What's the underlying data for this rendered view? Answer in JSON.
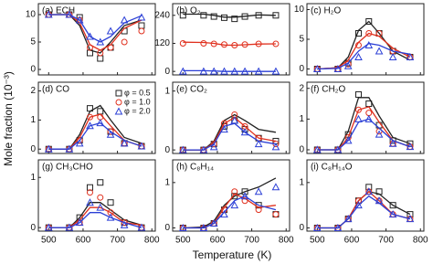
{
  "axes": {
    "xlabel": "Temperature (K)",
    "ylabel": "Mole fraction (10⁻³)",
    "xlim": [
      470,
      810
    ],
    "xticks": [
      500,
      600,
      700,
      800
    ]
  },
  "chart_data": [
    {
      "type": "line",
      "title": "(a) ECH",
      "ylim": [
        -1,
        12
      ],
      "yticks": [
        0,
        5,
        10
      ],
      "x": [
        500,
        560,
        590,
        620,
        650,
        680,
        720,
        770
      ],
      "series": [
        {
          "color": "#222222",
          "marker": "square",
          "values": [
            10,
            10,
            9.5,
            3,
            2,
            4,
            7,
            8
          ],
          "fit": [
            10,
            10,
            8,
            3.5,
            3,
            5,
            8,
            9
          ]
        },
        {
          "color": "#e0301e",
          "marker": "circle",
          "values": [
            10,
            10,
            9,
            4,
            3,
            4,
            5,
            7
          ],
          "fit": [
            10,
            10,
            8.5,
            4.5,
            3.5,
            4.5,
            7.5,
            9
          ]
        },
        {
          "color": "#2b3fd6",
          "marker": "triangle",
          "values": [
            10,
            10,
            9,
            6,
            5,
            7,
            9,
            9.5
          ],
          "fit": [
            10,
            10,
            9,
            6,
            5,
            6,
            8.5,
            9.8
          ]
        }
      ]
    },
    {
      "type": "line",
      "title": "(b) O₂",
      "ylim": [
        -15,
        290
      ],
      "yticks": [
        0,
        120,
        240
      ],
      "x": [
        500,
        560,
        590,
        620,
        650,
        680,
        720,
        770
      ],
      "series": [
        {
          "color": "#222222",
          "marker": "square",
          "values": [
            240,
            240,
            235,
            230,
            225,
            235,
            240,
            240
          ],
          "fit": [
            245,
            245,
            240,
            232,
            232,
            236,
            242,
            240
          ]
        },
        {
          "color": "#e0301e",
          "marker": "circle",
          "values": [
            120,
            120,
            118,
            115,
            112,
            115,
            118,
            118
          ],
          "fit": [
            125,
            124,
            120,
            113,
            112,
            114,
            117,
            118
          ]
        },
        {
          "color": "#2b3fd6",
          "marker": "triangle",
          "values": [
            0,
            0,
            0,
            0,
            0,
            0,
            0,
            0
          ],
          "fit": [
            3,
            3,
            2,
            0,
            0,
            0,
            0,
            0
          ]
        }
      ]
    },
    {
      "type": "line",
      "title": "(c) H₂O",
      "ylim": [
        -1,
        11
      ],
      "yticks": [
        0,
        5,
        10
      ],
      "x": [
        500,
        560,
        590,
        620,
        650,
        680,
        720,
        770
      ],
      "series": [
        {
          "color": "#222222",
          "marker": "square",
          "values": [
            0,
            0,
            1,
            6,
            8,
            6,
            3,
            2
          ],
          "fit": [
            0,
            0.2,
            2,
            6.5,
            8,
            6,
            3,
            1.5
          ]
        },
        {
          "color": "#e0301e",
          "marker": "circle",
          "values": [
            0,
            0,
            0.8,
            4,
            6,
            6,
            3,
            2
          ],
          "fit": [
            0,
            0.2,
            1.5,
            4.5,
            6,
            5.5,
            3.5,
            2
          ]
        },
        {
          "color": "#2b3fd6",
          "marker": "triangle",
          "values": [
            0,
            0,
            0.5,
            2,
            4,
            3,
            2,
            2
          ],
          "fit": [
            0,
            0.1,
            1,
            3,
            4.3,
            4,
            3,
            2.5
          ]
        }
      ]
    },
    {
      "type": "line",
      "title": "(d) CO",
      "ylim": [
        -0.15,
        2.3
      ],
      "yticks": [
        0,
        1,
        2
      ],
      "x": [
        500,
        560,
        590,
        620,
        650,
        680,
        720,
        770
      ],
      "series": [
        {
          "name": "φ = 0.5",
          "color": "#222222",
          "marker": "square",
          "values": [
            0,
            0,
            0.3,
            1.4,
            1.3,
            0.6,
            0.2,
            0.1
          ],
          "fit": [
            0,
            0,
            0.5,
            1.3,
            1.5,
            1,
            0.4,
            0.2
          ]
        },
        {
          "name": "φ = 1.0",
          "color": "#e0301e",
          "marker": "circle",
          "values": [
            0,
            0,
            0.3,
            1.1,
            1.1,
            0.6,
            0.2,
            0.1
          ],
          "fit": [
            0,
            0,
            0.4,
            1.1,
            1.2,
            0.8,
            0.3,
            0.1
          ]
        },
        {
          "name": "φ = 2.0",
          "color": "#2b3fd6",
          "marker": "triangle",
          "values": [
            0,
            0,
            0.2,
            0.8,
            0.9,
            0.5,
            0.2,
            0.1
          ],
          "fit": [
            0,
            0,
            0.3,
            0.8,
            0.9,
            0.6,
            0.3,
            0.1
          ]
        }
      ]
    },
    {
      "type": "line",
      "title": "(e) CO₂",
      "ylim": [
        -0.06,
        1.15
      ],
      "yticks": [
        0,
        1
      ],
      "x": [
        500,
        560,
        590,
        620,
        650,
        680,
        720,
        770
      ],
      "series": [
        {
          "color": "#222222",
          "marker": "square",
          "values": [
            0,
            0,
            0.1,
            0.4,
            0.5,
            0.35,
            0.2,
            0.15
          ],
          "fit": [
            0,
            0,
            0.15,
            0.5,
            0.6,
            0.5,
            0.35,
            0.3
          ]
        },
        {
          "color": "#e0301e",
          "marker": "circle",
          "values": [
            0,
            0,
            0.1,
            0.45,
            0.6,
            0.4,
            0.2,
            0.1
          ],
          "fit": [
            0,
            0,
            0.12,
            0.45,
            0.55,
            0.4,
            0.2,
            0.15
          ]
        },
        {
          "color": "#2b3fd6",
          "marker": "triangle",
          "values": [
            0,
            0,
            0.05,
            0.35,
            0.5,
            0.3,
            0.1,
            0.05
          ],
          "fit": [
            0,
            0,
            0.1,
            0.4,
            0.45,
            0.3,
            0.15,
            0.1
          ]
        }
      ]
    },
    {
      "type": "line",
      "title": "(f) CH₂O",
      "ylim": [
        -0.12,
        2.2
      ],
      "yticks": [
        0,
        1,
        2
      ],
      "x": [
        500,
        560,
        590,
        620,
        650,
        680,
        720,
        770
      ],
      "series": [
        {
          "color": "#222222",
          "marker": "square",
          "values": [
            0,
            0,
            0.5,
            1.8,
            1.5,
            0.8,
            0.3,
            0.2
          ],
          "fit": [
            0,
            0,
            0.6,
            1.7,
            1.7,
            1.1,
            0.4,
            0.2
          ]
        },
        {
          "color": "#e0301e",
          "marker": "circle",
          "values": [
            0,
            0,
            0.4,
            1.3,
            1.2,
            0.6,
            0.2,
            0.1
          ],
          "fit": [
            0,
            0,
            0.4,
            1.3,
            1.4,
            0.9,
            0.3,
            0.1
          ]
        },
        {
          "color": "#2b3fd6",
          "marker": "triangle",
          "values": [
            0,
            0,
            0.3,
            1,
            1,
            0.5,
            0.2,
            0.1
          ],
          "fit": [
            0,
            0,
            0.3,
            0.9,
            1,
            0.7,
            0.3,
            0.1
          ]
        }
      ]
    },
    {
      "type": "line",
      "title": "(g) CH₃CHO",
      "ylim": [
        -0.07,
        1.35
      ],
      "yticks": [
        0,
        1
      ],
      "x": [
        500,
        560,
        590,
        620,
        650,
        680,
        720,
        770
      ],
      "series": [
        {
          "color": "#222222",
          "marker": "square",
          "values": [
            0,
            0,
            0.2,
            0.8,
            0.9,
            0.5,
            0.1,
            0
          ],
          "fit": [
            0,
            0,
            0.2,
            0.5,
            0.5,
            0.35,
            0.15,
            0.05
          ]
        },
        {
          "color": "#e0301e",
          "marker": "circle",
          "values": [
            0,
            0,
            0.1,
            0.7,
            0.6,
            0.3,
            0.1,
            0
          ],
          "fit": [
            0,
            0,
            0.15,
            0.4,
            0.4,
            0.3,
            0.1,
            0.05
          ]
        },
        {
          "color": "#2b3fd6",
          "marker": "triangle",
          "values": [
            0,
            0,
            0.1,
            0.5,
            0.4,
            0.2,
            0.05,
            0
          ],
          "fit": [
            0,
            0,
            0.1,
            0.3,
            0.3,
            0.2,
            0.1,
            0
          ]
        }
      ]
    },
    {
      "type": "line",
      "title": "(h) C₈H₁₄",
      "ylim": [
        -0.07,
        1.5
      ],
      "yticks": [
        0,
        1
      ],
      "x": [
        500,
        560,
        590,
        620,
        650,
        680,
        720,
        770
      ],
      "series": [
        {
          "color": "#222222",
          "marker": "square",
          "values": [
            0,
            0,
            0.1,
            0.4,
            0.7,
            0.8,
            0.5,
            0.3
          ],
          "fit": [
            0,
            0.02,
            0.15,
            0.5,
            0.7,
            0.8,
            0.9,
            1.1
          ]
        },
        {
          "color": "#e0301e",
          "marker": "circle",
          "values": [
            0,
            0,
            0.1,
            0.4,
            0.8,
            0.6,
            0.4,
            0.3
          ],
          "fit": [
            0,
            0,
            0.1,
            0.45,
            0.75,
            0.65,
            0.45,
            0.5
          ]
        },
        {
          "color": "#2b3fd6",
          "marker": "triangle",
          "values": [
            0,
            0,
            0.1,
            0.3,
            0.5,
            0.7,
            0.8,
            0.9
          ],
          "fit": [
            0,
            0,
            0.1,
            0.35,
            0.6,
            0.7,
            0.5,
            0.4
          ]
        }
      ]
    },
    {
      "type": "line",
      "title": "(i) C₈H₁₄O",
      "ylim": [
        -0.07,
        1.5
      ],
      "yticks": [
        0,
        1
      ],
      "x": [
        500,
        560,
        590,
        620,
        650,
        680,
        720,
        770
      ],
      "series": [
        {
          "color": "#222222",
          "marker": "square",
          "values": [
            0,
            0,
            0.2,
            0.6,
            0.9,
            0.8,
            0.5,
            0.3
          ],
          "fit": [
            0,
            0,
            0.2,
            0.6,
            0.8,
            0.75,
            0.5,
            0.3
          ]
        },
        {
          "color": "#e0301e",
          "marker": "circle",
          "values": [
            0,
            0,
            0.2,
            0.6,
            0.8,
            0.6,
            0.3,
            0.2
          ],
          "fit": [
            0,
            0,
            0.2,
            0.6,
            0.8,
            0.6,
            0.3,
            0.2
          ]
        },
        {
          "color": "#2b3fd6",
          "marker": "triangle",
          "values": [
            0,
            0,
            0.2,
            0.5,
            0.8,
            0.6,
            0.3,
            0.2
          ],
          "fit": [
            0,
            0,
            0.2,
            0.5,
            0.7,
            0.55,
            0.3,
            0.2
          ]
        }
      ]
    }
  ]
}
